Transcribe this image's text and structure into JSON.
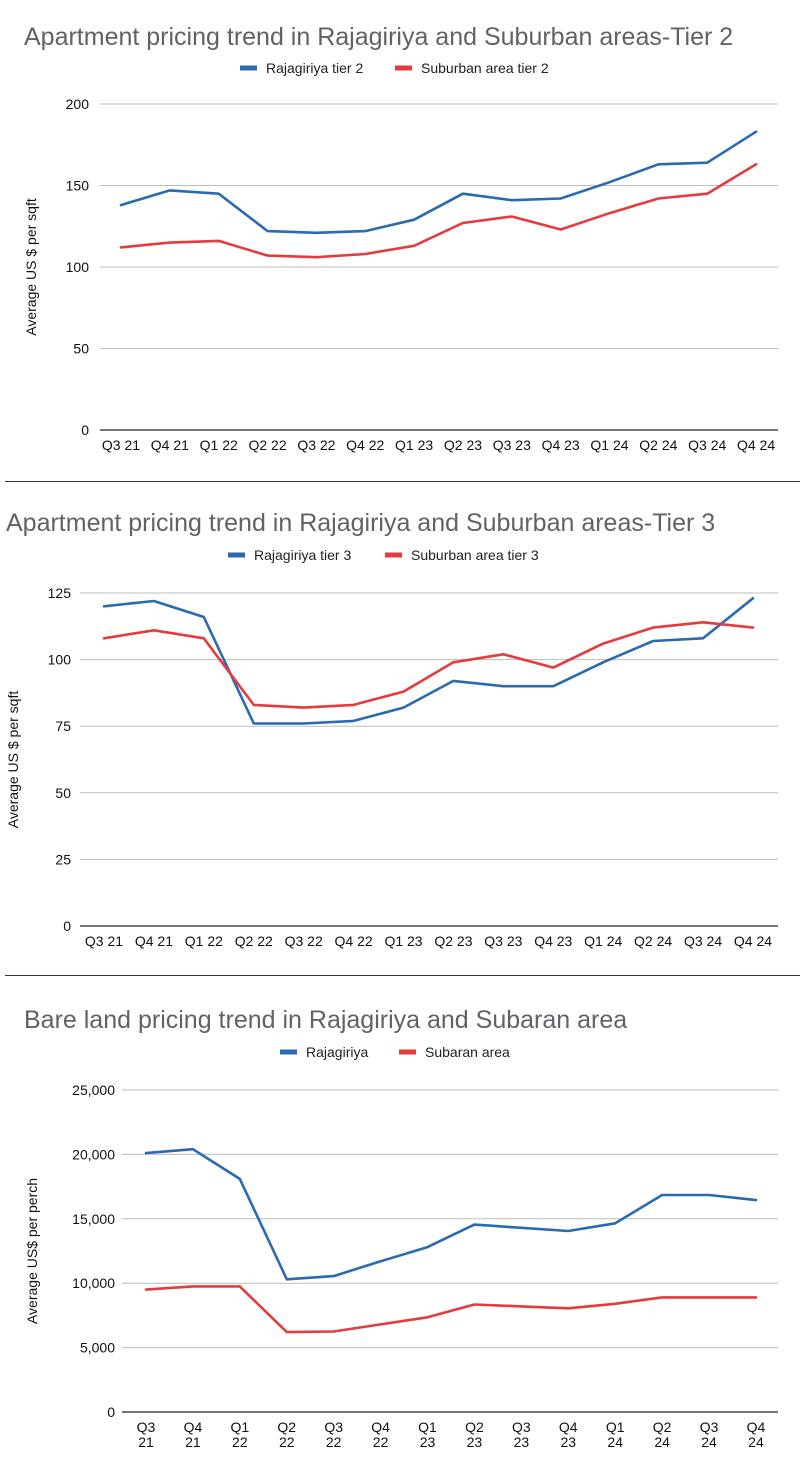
{
  "chart_data": [
    {
      "type": "line",
      "title": "Apartment pricing trend in Rajagiriya and Suburban areas-Tier 2",
      "ylabel": "Average US $ per sqft",
      "xlabel": "",
      "categories": [
        "Q3 21",
        "Q4 21",
        "Q1 22",
        "Q2 22",
        "Q3 22",
        "Q4 22",
        "Q1 23",
        "Q2 23",
        "Q3 23",
        "Q4 23",
        "Q1 24",
        "Q2 24",
        "Q3 24",
        "Q4 24"
      ],
      "yticks": [
        "0",
        "50",
        "100",
        "150",
        "200"
      ],
      "ylim": [
        0,
        200
      ],
      "grid": true,
      "legend_position": "top",
      "series": [
        {
          "name": "Rajagiriya tier 2",
          "color": "#2a6ab1",
          "values": [
            138,
            147,
            145,
            122,
            121,
            122,
            129,
            145,
            141,
            142,
            152,
            163,
            164,
            183
          ]
        },
        {
          "name": "Suburban area tier 2",
          "color": "#e33b3e",
          "values": [
            112,
            115,
            116,
            107,
            106,
            108,
            113,
            127,
            131,
            123,
            133,
            142,
            145,
            163
          ]
        }
      ]
    },
    {
      "type": "line",
      "title": "Apartment pricing trend in Rajagiriya and Suburban areas-Tier 3",
      "ylabel": "Average US $ per sqft",
      "xlabel": "",
      "categories": [
        "Q3 21",
        "Q4 21",
        "Q1 22",
        "Q2 22",
        "Q3 22",
        "Q4 22",
        "Q1 23",
        "Q2 23",
        "Q3 23",
        "Q4 23",
        "Q1 24",
        "Q2 24",
        "Q3 24",
        "Q4 24"
      ],
      "yticks": [
        "0",
        "25",
        "50",
        "75",
        "100",
        "125"
      ],
      "ylim": [
        0,
        125
      ],
      "grid": true,
      "legend_position": "top",
      "series": [
        {
          "name": "Rajagiriya tier 3",
          "color": "#2a6ab1",
          "values": [
            120,
            122,
            116,
            76,
            76,
            77,
            82,
            92,
            90,
            90,
            99,
            107,
            108,
            123
          ]
        },
        {
          "name": "Suburban area tier 3",
          "color": "#e33b3e",
          "values": [
            108,
            111,
            108,
            83,
            82,
            83,
            88,
            99,
            102,
            97,
            106,
            112,
            114,
            112
          ]
        }
      ]
    },
    {
      "type": "line",
      "title": "Bare land pricing trend in Rajagiriya and  Subaran area",
      "ylabel": "Average US$ per perch",
      "xlabel": "",
      "categories": [
        "Q3 21",
        "Q4 21",
        "Q1 22",
        "Q2 22",
        "Q3 22",
        "Q4 22",
        "Q1 23",
        "Q2 23",
        "Q3 23",
        "Q4 23",
        "Q1 24",
        "Q2 24",
        "Q3 24",
        "Q4 24"
      ],
      "yticks": [
        "0",
        "5,000",
        "10,000",
        "15,000",
        "20,000",
        "25,000"
      ],
      "ylim": [
        0,
        25000
      ],
      "grid": true,
      "legend_position": "top",
      "series": [
        {
          "name": "Rajagiriya",
          "color": "#2a6ab1",
          "values": [
            20100,
            20400,
            18100,
            10300,
            10550,
            11700,
            12800,
            14550,
            14300,
            14050,
            14650,
            16850,
            16850,
            16450
          ]
        },
        {
          "name": "Subaran area",
          "color": "#e33b3e",
          "values": [
            9500,
            9750,
            9750,
            6200,
            6250,
            6800,
            7350,
            8350,
            8200,
            8050,
            8400,
            8900,
            8900,
            8900
          ]
        }
      ]
    }
  ]
}
